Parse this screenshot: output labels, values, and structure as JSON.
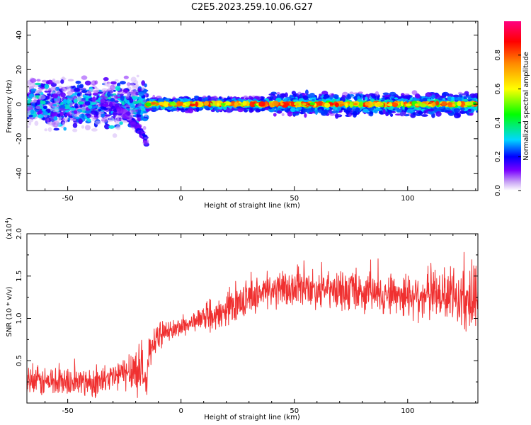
{
  "figure": {
    "title": "C2E5.2023.259.10.06.G27"
  },
  "chart_data": [
    {
      "type": "heatmap",
      "title": "C2E5.2023.259.10.06.G27",
      "xlabel": "Height of straight line (km)",
      "ylabel": "Frequency (Hz)",
      "xlim": [
        -68,
        131
      ],
      "ylim": [
        -50,
        48
      ],
      "x_ticks": [
        -50,
        0,
        50,
        100
      ],
      "y_ticks": [
        -40,
        -20,
        0,
        20,
        40
      ],
      "x_tick_labels": [
        "-50",
        "0",
        "50",
        "100"
      ],
      "y_tick_labels": [
        "-40",
        "-20",
        "0",
        "20",
        "40"
      ],
      "colorbar": {
        "label": "Normalized spectral amplitude",
        "range": [
          0,
          1
        ],
        "ticks": [
          0.0,
          0.2,
          0.4,
          0.6,
          0.8
        ],
        "tick_labels": [
          "0.0",
          "0.2",
          "0.4",
          "0.6",
          "0.8"
        ],
        "colors": [
          "#ffffff",
          "#c9a5f5",
          "#7a00ff",
          "#0000ff",
          "#00d7ff",
          "#00ff00",
          "#ffff00",
          "#ff8a00",
          "#ff0000",
          "#ff0080"
        ]
      },
      "features": [
        {
          "x_range": [
            -68,
            -15
          ],
          "freq_center": 0,
          "freq_spread": 8,
          "amplitude": 0.3
        },
        {
          "x_range": [
            -15,
            131
          ],
          "freq_center": 0,
          "freq_spread": 2,
          "amplitude": 0.75
        },
        {
          "x_range": [
            -35,
            -15
          ],
          "freq_start": 0,
          "freq_end": -22,
          "amplitude": 0.25
        }
      ],
      "grid": false
    },
    {
      "type": "line",
      "xlabel": "Height of straight line (km)",
      "ylabel": "SNR (10 * v/v)",
      "y_multiplier_base": "(x10",
      "y_multiplier_exp": "4",
      "y_multiplier_close": ")",
      "xlim": [
        -68,
        131
      ],
      "ylim": [
        0,
        2.0
      ],
      "x_ticks": [
        -50,
        0,
        50,
        100
      ],
      "y_ticks": [
        0.5,
        1.0,
        1.5,
        2.0
      ],
      "x_tick_labels": [
        "-50",
        "0",
        "50",
        "100"
      ],
      "y_tick_labels": [
        "0.5",
        "1.0",
        "1.5",
        "2.0"
      ],
      "color": "#f03030",
      "grid": false,
      "series_trend": {
        "x": [
          -68,
          -50,
          -35,
          -25,
          -18,
          -15,
          -14,
          -10,
          -5,
          0,
          5,
          8,
          15,
          20,
          25,
          30,
          35,
          40,
          50,
          60,
          70,
          80,
          90,
          100,
          110,
          120,
          131
        ],
        "y": [
          0.25,
          0.25,
          0.25,
          0.35,
          0.45,
          0.2,
          0.65,
          0.8,
          0.85,
          0.9,
          0.95,
          1.0,
          1.0,
          1.1,
          1.2,
          1.25,
          1.3,
          1.33,
          1.35,
          1.35,
          1.32,
          1.3,
          1.3,
          1.28,
          1.28,
          1.25,
          1.2
        ],
        "noise_amplitude": [
          0.18,
          0.18,
          0.18,
          0.2,
          0.35,
          0.2,
          0.2,
          0.15,
          0.12,
          0.12,
          0.12,
          0.12,
          0.18,
          0.18,
          0.2,
          0.2,
          0.2,
          0.22,
          0.22,
          0.22,
          0.22,
          0.24,
          0.25,
          0.28,
          0.3,
          0.35,
          0.38
        ]
      }
    }
  ]
}
